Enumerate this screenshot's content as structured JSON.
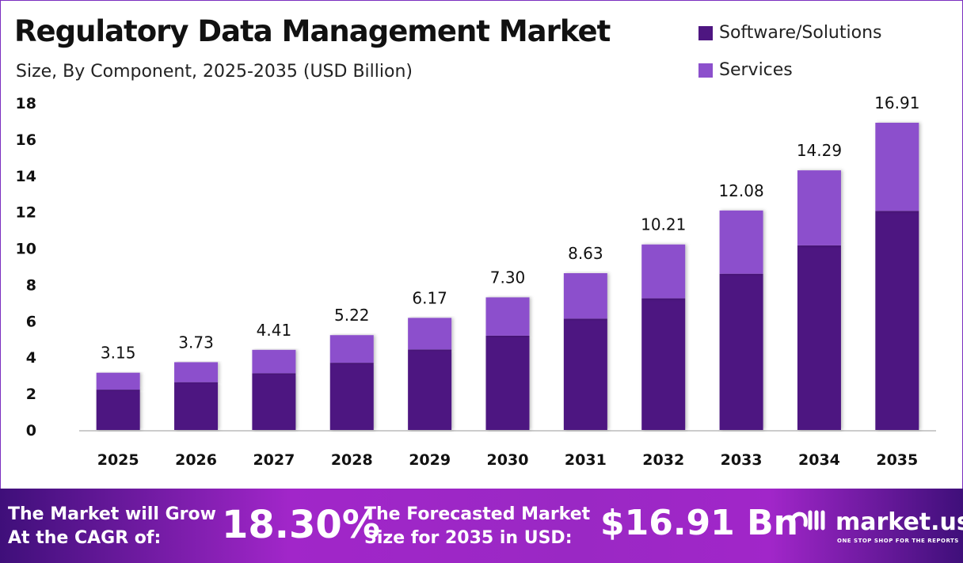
{
  "chart_data": {
    "type": "bar",
    "stacked": true,
    "title": "Regulatory Data Management Market",
    "subtitle": "Size, By Component, 2025-2035 (USD Billion)",
    "categories": [
      "2025",
      "2026",
      "2027",
      "2028",
      "2029",
      "2030",
      "2031",
      "2032",
      "2033",
      "2034",
      "2035"
    ],
    "series": [
      {
        "name": "Software/Solutions",
        "color": "#4e1681",
        "values": [
          2.22,
          2.63,
          3.12,
          3.7,
          4.43,
          5.19,
          6.13,
          7.25,
          8.6,
          10.16,
          12.06
        ]
      },
      {
        "name": "Services",
        "color": "#8c50cc",
        "values": [
          0.93,
          1.1,
          1.29,
          1.52,
          1.74,
          2.11,
          2.5,
          2.96,
          3.48,
          4.13,
          4.85
        ]
      }
    ],
    "totals": [
      "3.15",
      "3.73",
      "4.41",
      "5.22",
      "6.17",
      "7.30",
      "8.63",
      "10.21",
      "12.08",
      "14.29",
      "16.91"
    ],
    "ylim": [
      0,
      18
    ],
    "yticks": [
      "0",
      "2",
      "4",
      "6",
      "8",
      "10",
      "12",
      "14",
      "16",
      "18"
    ],
    "grid": false,
    "legend": "top-right"
  },
  "footer": {
    "cagr_label_line1": "The Market will Grow",
    "cagr_label_line2": "At the CAGR of:",
    "cagr_value": "18.30%",
    "forecast_label_line1": "The Forecasted Market",
    "forecast_label_line2": "Size for 2035 in USD:",
    "forecast_value": "$16.91 Bn",
    "logo_text": "market.us",
    "logo_tagline": "ONE STOP SHOP FOR THE REPORTS"
  }
}
